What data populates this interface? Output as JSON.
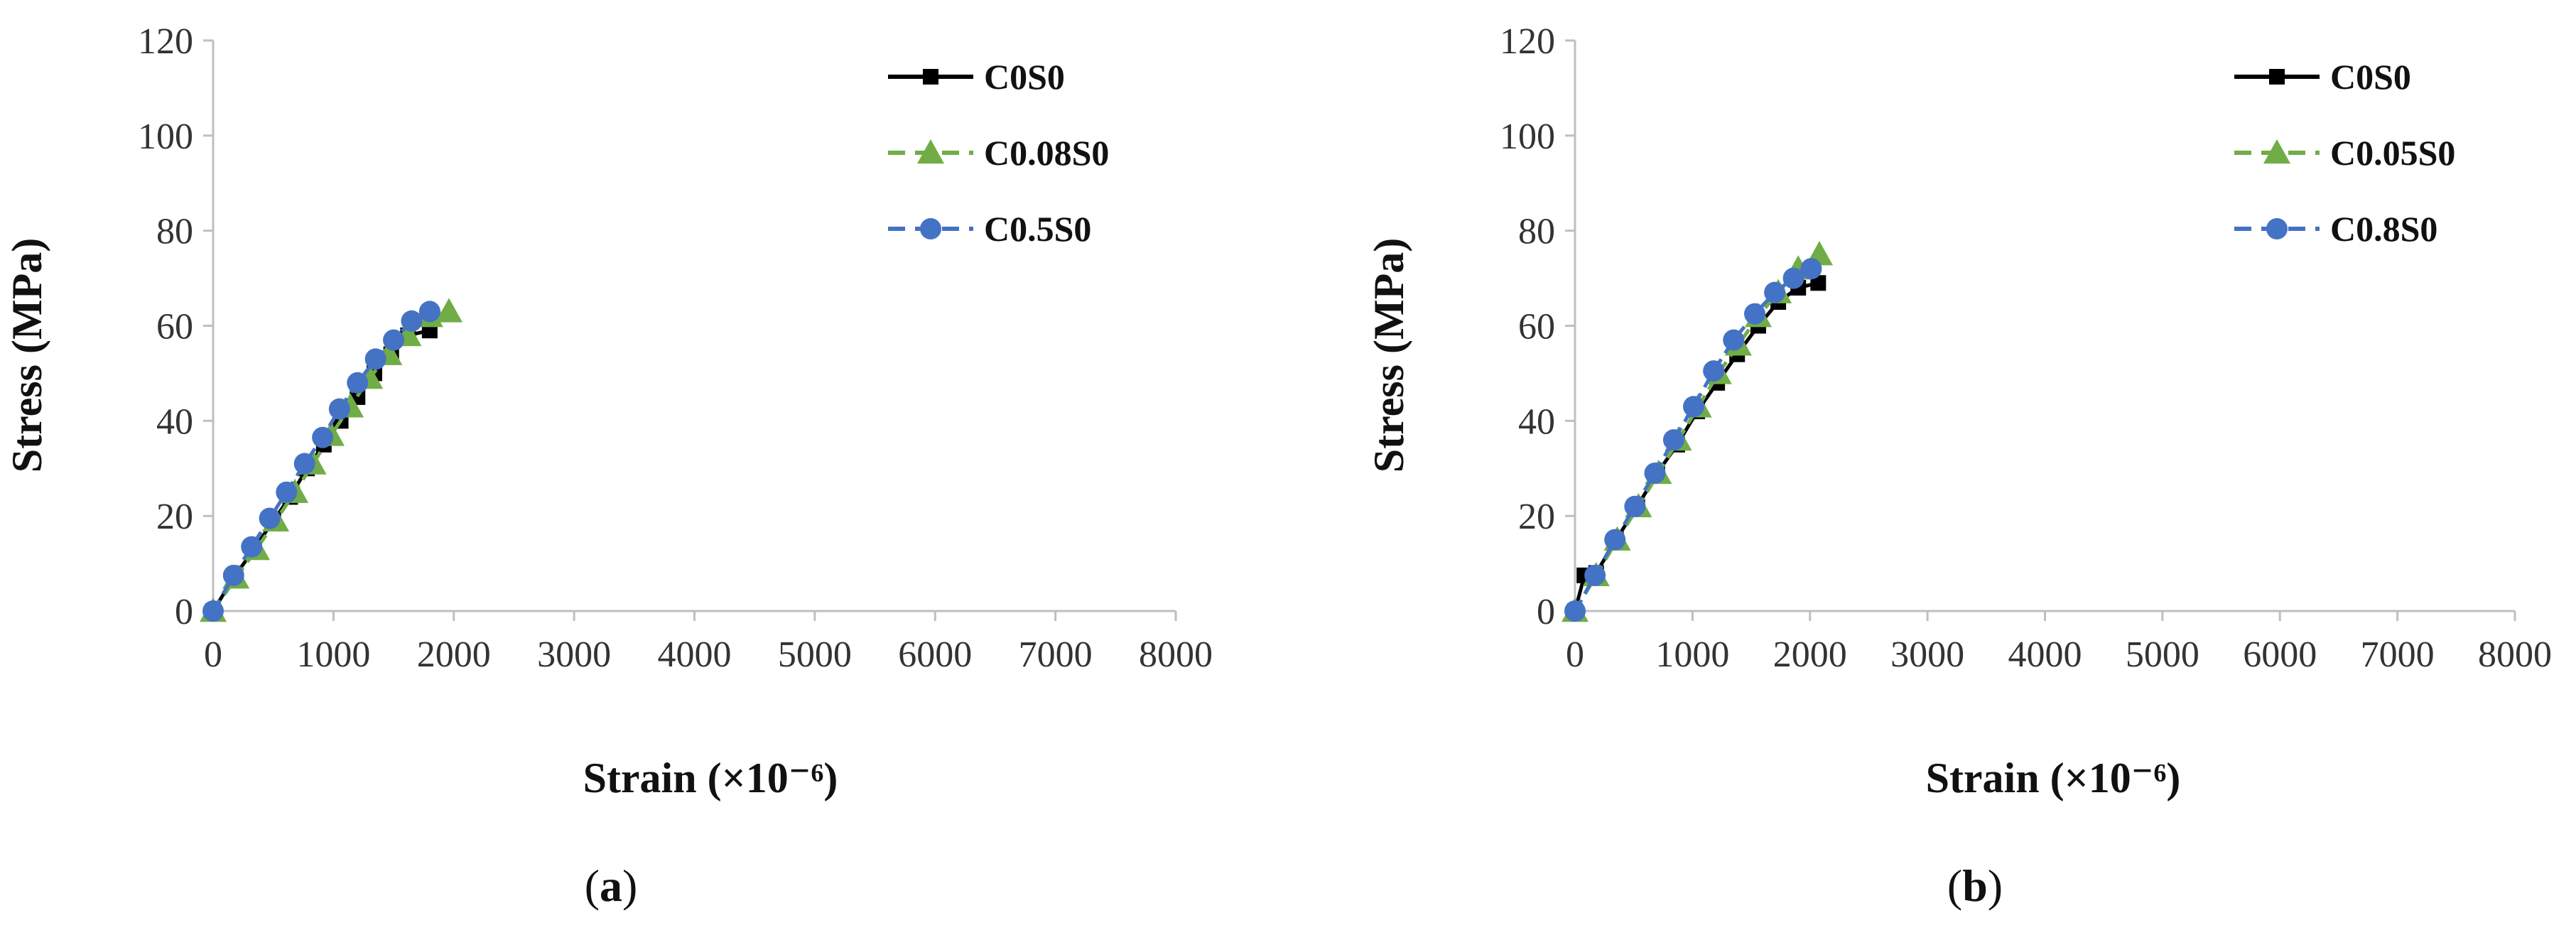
{
  "chart_data": [
    {
      "type": "line",
      "panel_label": "a",
      "xlabel": "Strain (×10⁻⁶)",
      "ylabel": "Stress (MPa)",
      "xlim": [
        0,
        8000
      ],
      "ylim": [
        0,
        120
      ],
      "xticks": [
        0,
        1000,
        2000,
        3000,
        4000,
        5000,
        6000,
        7000,
        8000
      ],
      "yticks": [
        0,
        20,
        40,
        60,
        80,
        100,
        120
      ],
      "grid": false,
      "legend_position": "top-right",
      "series": [
        {
          "name": "C0S0",
          "color": "#000000",
          "dash": "solid",
          "marker": "square",
          "x": [
            0,
            170,
            340,
            500,
            640,
            780,
            920,
            1060,
            1200,
            1340,
            1480,
            1620,
            1800
          ],
          "y": [
            0,
            7,
            13,
            19,
            24,
            30,
            35,
            40,
            45,
            50,
            54,
            58,
            59
          ]
        },
        {
          "name": "C0.08S0",
          "color": "#70ad47",
          "dash": "dashed",
          "marker": "triangle",
          "x": [
            0,
            190,
            360,
            520,
            680,
            830,
            980,
            1140,
            1300,
            1460,
            1620,
            1800,
            1960
          ],
          "y": [
            0,
            7,
            13,
            19,
            25,
            31,
            37,
            43,
            49,
            54,
            58,
            62,
            63
          ]
        },
        {
          "name": "C0.5S0",
          "color": "#4472c4",
          "dash": "dashed",
          "marker": "circle",
          "x": [
            0,
            170,
            320,
            470,
            610,
            760,
            910,
            1050,
            1200,
            1350,
            1500,
            1650,
            1800
          ],
          "y": [
            0,
            7.5,
            13.5,
            19.5,
            25,
            31,
            36.5,
            42.5,
            48,
            53,
            57,
            61,
            63
          ]
        }
      ]
    },
    {
      "type": "line",
      "panel_label": "b",
      "xlabel": "Strain (×10⁻⁶)",
      "ylabel": "Stress (MPa)",
      "xlim": [
        0,
        8000
      ],
      "ylim": [
        0,
        120
      ],
      "xticks": [
        0,
        1000,
        2000,
        3000,
        4000,
        5000,
        6000,
        7000,
        8000
      ],
      "yticks": [
        0,
        20,
        40,
        60,
        80,
        100,
        120
      ],
      "grid": false,
      "legend_position": "top-right",
      "series": [
        {
          "name": "C0S0",
          "color": "#000000",
          "dash": "solid",
          "marker": "square",
          "x": [
            0,
            80,
            180,
            350,
            530,
            700,
            870,
            1040,
            1210,
            1380,
            1560,
            1730,
            1900,
            2070
          ],
          "y": [
            0,
            7.5,
            8,
            15,
            22,
            29,
            35,
            42,
            48,
            54,
            60,
            65,
            68,
            69
          ]
        },
        {
          "name": "C0.05S0",
          "color": "#70ad47",
          "dash": "dashed",
          "marker": "triangle",
          "x": [
            0,
            180,
            360,
            540,
            710,
            880,
            1050,
            1220,
            1390,
            1560,
            1730,
            1900,
            2080
          ],
          "y": [
            0,
            7.5,
            15,
            22,
            29,
            36,
            43,
            50,
            56,
            62,
            67,
            72,
            75
          ]
        },
        {
          "name": "C0.8S0",
          "color": "#4472c4",
          "dash": "dashed",
          "marker": "circle",
          "x": [
            0,
            170,
            340,
            510,
            680,
            840,
            1010,
            1180,
            1350,
            1530,
            1700,
            1860,
            2010
          ],
          "y": [
            0,
            7.5,
            15,
            22,
            29,
            36,
            43,
            50.5,
            57,
            62.5,
            67,
            70,
            72
          ]
        }
      ]
    }
  ]
}
